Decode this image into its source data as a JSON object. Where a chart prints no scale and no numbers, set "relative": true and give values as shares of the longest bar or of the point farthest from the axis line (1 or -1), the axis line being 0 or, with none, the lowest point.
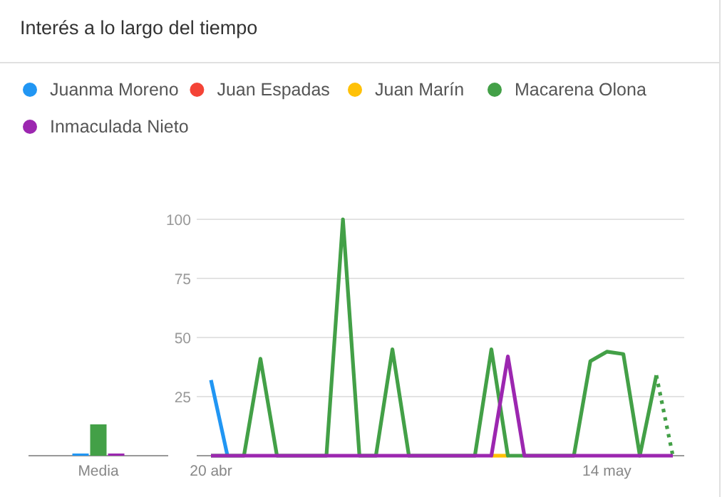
{
  "chart_data": [
    {
      "type": "line",
      "title": "Interés a lo largo del tiempo",
      "categories": [
        "20 abr",
        null,
        null,
        null,
        null,
        null,
        null,
        null,
        null,
        null,
        null,
        null,
        null,
        null,
        null,
        null,
        null,
        null,
        null,
        null,
        null,
        null,
        null,
        null,
        "14 may",
        null,
        null,
        null,
        null
      ],
      "series": [
        {
          "name": "Juanma Moreno",
          "color": "#2196f3",
          "values": [
            32,
            0,
            null,
            null,
            null,
            null,
            null,
            null,
            null,
            null,
            null,
            null,
            null,
            null,
            null,
            null,
            null,
            null,
            null,
            null,
            null,
            null,
            null,
            null,
            null,
            null,
            null,
            null,
            null
          ]
        },
        {
          "name": "Juan Espadas",
          "color": "#f44336",
          "values": [
            null,
            null,
            null,
            null,
            null,
            null,
            null,
            null,
            null,
            null,
            null,
            null,
            null,
            null,
            null,
            null,
            null,
            null,
            null,
            null,
            null,
            null,
            null,
            null,
            null,
            null,
            null,
            null,
            null
          ]
        },
        {
          "name": "Juan Marín",
          "color": "#ffc107",
          "values": [
            null,
            null,
            null,
            null,
            null,
            null,
            null,
            null,
            null,
            null,
            null,
            null,
            null,
            null,
            null,
            null,
            null,
            0,
            0,
            null,
            null,
            null,
            null,
            null,
            null,
            null,
            null,
            null,
            null
          ]
        },
        {
          "name": "Macarena Olona",
          "color": "#43a047",
          "values": [
            0,
            0,
            0,
            41,
            0,
            0,
            0,
            0,
            100,
            0,
            0,
            45,
            0,
            0,
            0,
            0,
            0,
            45,
            0,
            0,
            0,
            0,
            0,
            40,
            44,
            43,
            0,
            34,
            null
          ]
        },
        {
          "color": "#43a047",
          "line_style": "dotted",
          "values": [
            null,
            null,
            null,
            null,
            null,
            null,
            null,
            null,
            null,
            null,
            null,
            null,
            null,
            null,
            null,
            null,
            null,
            null,
            null,
            null,
            null,
            null,
            null,
            null,
            null,
            null,
            null,
            34,
            0
          ]
        },
        {
          "name": "Inmaculada Nieto",
          "color": "#9c27b0",
          "values": [
            0,
            0,
            0,
            0,
            0,
            0,
            0,
            0,
            0,
            0,
            0,
            0,
            0,
            0,
            0,
            0,
            0,
            0,
            42,
            0,
            0,
            0,
            0,
            0,
            0,
            0,
            0,
            0,
            0
          ]
        }
      ],
      "ylim": [
        0,
        100
      ],
      "yticks": [
        {
          "value": 0,
          "label": null
        },
        25,
        50,
        75,
        100
      ],
      "grid": "y",
      "legend": "top"
    },
    {
      "type": "bar",
      "relative": true,
      "categories": [
        "Media"
      ],
      "series": [
        {
          "color": "#2196f3",
          "values": [
            0.07
          ]
        },
        {
          "color": "#43a047",
          "values": [
            1
          ]
        },
        {
          "color": "#9c27b0",
          "values": [
            0.07
          ]
        }
      ]
    }
  ]
}
